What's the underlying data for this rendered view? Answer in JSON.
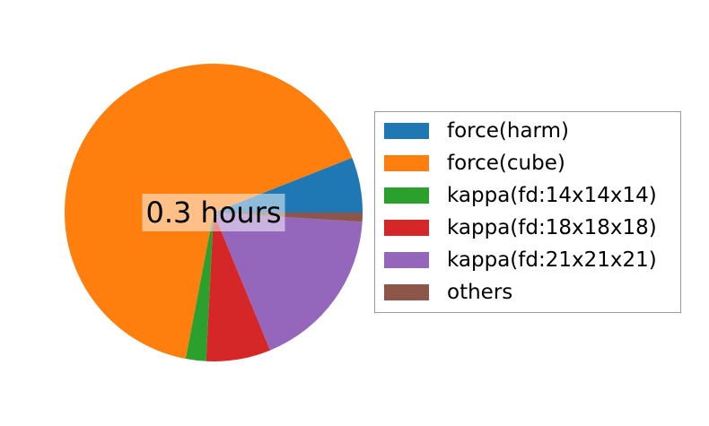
{
  "chart_data": {
    "type": "pie",
    "center_label": "0.3 hours",
    "slices": [
      {
        "label": "force(harm)",
        "value": 6.0,
        "color": "#1f77b4"
      },
      {
        "label": "force(cube)",
        "value": 66.0,
        "color": "#ff7f0e"
      },
      {
        "label": "kappa(fd:14x14x14)",
        "value": 2.2,
        "color": "#2ca02c"
      },
      {
        "label": "kappa(fd:18x18x18)",
        "value": 7.0,
        "color": "#d62728"
      },
      {
        "label": "kappa(fd:21x21x21)",
        "value": 17.8,
        "color": "#9467bd"
      },
      {
        "label": "others",
        "value": 1.0,
        "color": "#8c564b"
      }
    ],
    "legend_position": "right"
  }
}
